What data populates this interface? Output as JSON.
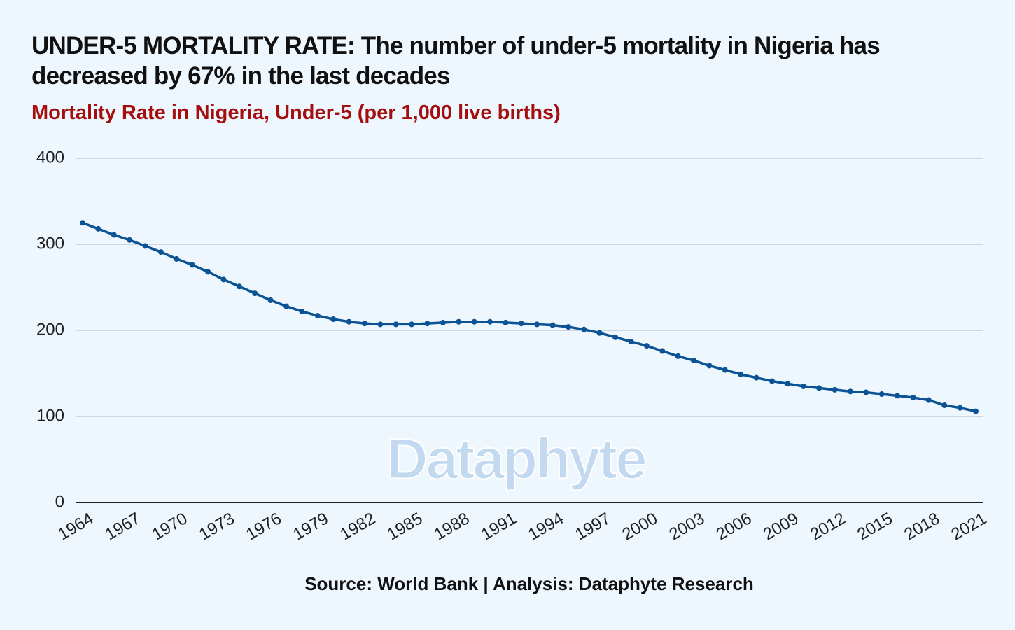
{
  "chart_data": {
    "type": "line",
    "title": "UNDER-5 MORTALITY RATE: The number of under-5 mortality in Nigeria has decreased by 67% in the last decades",
    "subtitle": "Mortality Rate in Nigeria, Under-5 (per 1,000 live births)",
    "source": "Source: World Bank | Analysis: Dataphyte Research",
    "watermark": "Dataphyte",
    "x": [
      1964,
      1965,
      1966,
      1967,
      1968,
      1969,
      1970,
      1971,
      1972,
      1973,
      1974,
      1975,
      1976,
      1977,
      1978,
      1979,
      1980,
      1981,
      1982,
      1983,
      1984,
      1985,
      1986,
      1987,
      1988,
      1989,
      1990,
      1991,
      1992,
      1993,
      1994,
      1995,
      1996,
      1997,
      1998,
      1999,
      2000,
      2001,
      2002,
      2003,
      2004,
      2005,
      2006,
      2007,
      2008,
      2009,
      2010,
      2011,
      2012,
      2013,
      2014,
      2015,
      2016,
      2017,
      2018,
      2019,
      2020,
      2021
    ],
    "series": [
      {
        "name": "Mortality Rate, Under-5",
        "color": "#0b5394",
        "values": [
          325,
          318,
          311,
          305,
          298,
          291,
          283,
          276,
          268,
          259,
          251,
          243,
          235,
          228,
          222,
          217,
          213,
          210,
          208,
          207,
          207,
          207,
          208,
          209,
          210,
          210,
          210,
          209,
          208,
          207,
          206,
          204,
          201,
          197,
          192,
          187,
          182,
          176,
          170,
          165,
          159,
          154,
          149,
          145,
          141,
          138,
          135,
          133,
          131,
          129,
          128,
          126,
          124,
          122,
          119,
          113,
          110,
          106
        ]
      }
    ],
    "xlim": [
      1964,
      2021
    ],
    "xticks": [
      1964,
      1967,
      1970,
      1973,
      1976,
      1979,
      1982,
      1985,
      1988,
      1991,
      1994,
      1997,
      2000,
      2003,
      2006,
      2009,
      2012,
      2015,
      2018,
      2021
    ],
    "ylim": [
      0,
      400
    ],
    "yticks": [
      0,
      100,
      200,
      300,
      400
    ],
    "grid": true
  }
}
